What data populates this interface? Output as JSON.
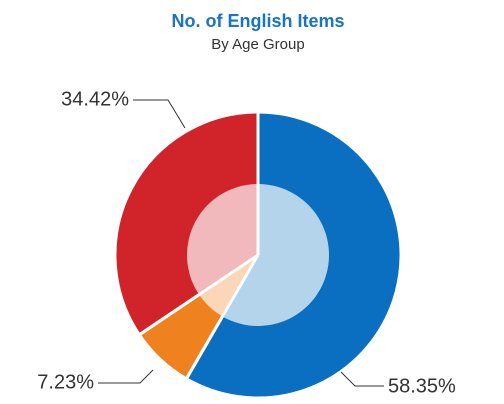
{
  "chart_data": {
    "type": "pie",
    "title": "No. of English Items",
    "subtitle": "By Age Group",
    "categories": [
      null,
      null,
      null
    ],
    "values": [
      58.35,
      7.23,
      34.42
    ],
    "value_labels": [
      "58.35%",
      "7.23%",
      "34.42%"
    ],
    "colors": [
      "#0a6fc0",
      "#f0811f",
      "#d1232a"
    ],
    "inner_colors": [
      "#b4d4ec",
      "#fbd6b8",
      "#f2b9bc"
    ]
  }
}
